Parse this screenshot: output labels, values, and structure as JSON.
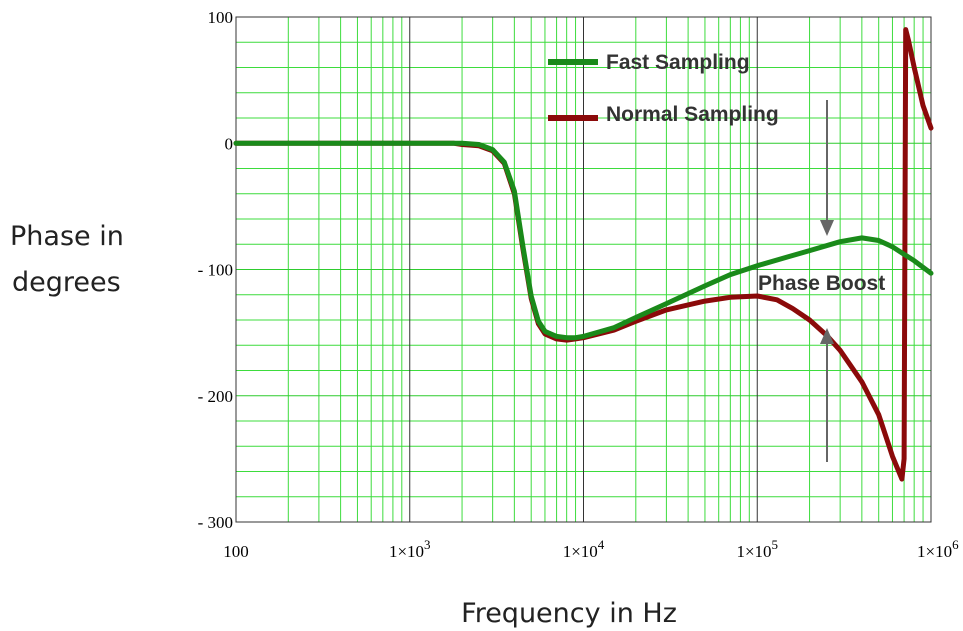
{
  "chart_data": {
    "type": "line",
    "xscale": "log",
    "xlim": [
      100,
      1000000
    ],
    "ylim": [
      -300,
      100
    ],
    "grid": true,
    "xlabel": "Frequency in Hz",
    "ylabel": "Phase in degrees",
    "ylabel_lines": [
      "Phase in",
      "degrees"
    ],
    "x_ticks": [
      {
        "value": 100,
        "label": "100"
      },
      {
        "value": 1000,
        "label": "1×10",
        "exp": "3"
      },
      {
        "value": 10000,
        "label": "1×10",
        "exp": "4"
      },
      {
        "value": 100000,
        "label": "1×10",
        "exp": "5"
      },
      {
        "value": 1000000,
        "label": "1×10",
        "exp": "6"
      }
    ],
    "y_ticks": [
      {
        "value": 100,
        "label": "100"
      },
      {
        "value": 0,
        "label": "0"
      },
      {
        "value": -100,
        "label": "- 100"
      },
      {
        "value": -200,
        "label": "- 200"
      },
      {
        "value": -300,
        "label": "- 300"
      }
    ],
    "legend_placement": "top-right",
    "series": [
      {
        "name": "Normal Sampling",
        "color": "#8b0a0a",
        "points": [
          [
            100,
            0
          ],
          [
            500,
            0
          ],
          [
            1000,
            0
          ],
          [
            1500,
            0
          ],
          [
            1800,
            0
          ],
          [
            2000,
            -1
          ],
          [
            2500,
            -2
          ],
          [
            3000,
            -6
          ],
          [
            3500,
            -16
          ],
          [
            4000,
            -40
          ],
          [
            4500,
            -85
          ],
          [
            5000,
            -123
          ],
          [
            5500,
            -143
          ],
          [
            6000,
            -151
          ],
          [
            7000,
            -155
          ],
          [
            8000,
            -156
          ],
          [
            9000,
            -155
          ],
          [
            10000,
            -154
          ],
          [
            15000,
            -148
          ],
          [
            20000,
            -141
          ],
          [
            30000,
            -132
          ],
          [
            50000,
            -125
          ],
          [
            70000,
            -122
          ],
          [
            100000,
            -121
          ],
          [
            130000,
            -124
          ],
          [
            160000,
            -131
          ],
          [
            200000,
            -140
          ],
          [
            250000,
            -152
          ],
          [
            300000,
            -164
          ],
          [
            400000,
            -189
          ],
          [
            500000,
            -215
          ],
          [
            600000,
            -248
          ],
          [
            680000,
            -266
          ],
          [
            700000,
            -250
          ],
          [
            715000,
            90
          ],
          [
            740000,
            82
          ],
          [
            800000,
            60
          ],
          [
            900000,
            30
          ],
          [
            1000000,
            12
          ]
        ]
      },
      {
        "name": "Fast Sampling",
        "color": "#1a8a1a",
        "points": [
          [
            100,
            0
          ],
          [
            500,
            0
          ],
          [
            1000,
            0
          ],
          [
            2000,
            0
          ],
          [
            2500,
            -1
          ],
          [
            3000,
            -5
          ],
          [
            3500,
            -15
          ],
          [
            4000,
            -38
          ],
          [
            4500,
            -83
          ],
          [
            5000,
            -121
          ],
          [
            5500,
            -141
          ],
          [
            6000,
            -149
          ],
          [
            7000,
            -153
          ],
          [
            8000,
            -154
          ],
          [
            9000,
            -154
          ],
          [
            10000,
            -153
          ],
          [
            15000,
            -146
          ],
          [
            20000,
            -138
          ],
          [
            30000,
            -127
          ],
          [
            50000,
            -113
          ],
          [
            70000,
            -104
          ],
          [
            100000,
            -97
          ],
          [
            150000,
            -90
          ],
          [
            200000,
            -85
          ],
          [
            300000,
            -78
          ],
          [
            400000,
            -75
          ],
          [
            500000,
            -77
          ],
          [
            600000,
            -82
          ],
          [
            700000,
            -88
          ],
          [
            800000,
            -93
          ],
          [
            1000000,
            -103
          ]
        ]
      }
    ],
    "annotations": [
      {
        "text": "Phase Boost"
      }
    ]
  }
}
